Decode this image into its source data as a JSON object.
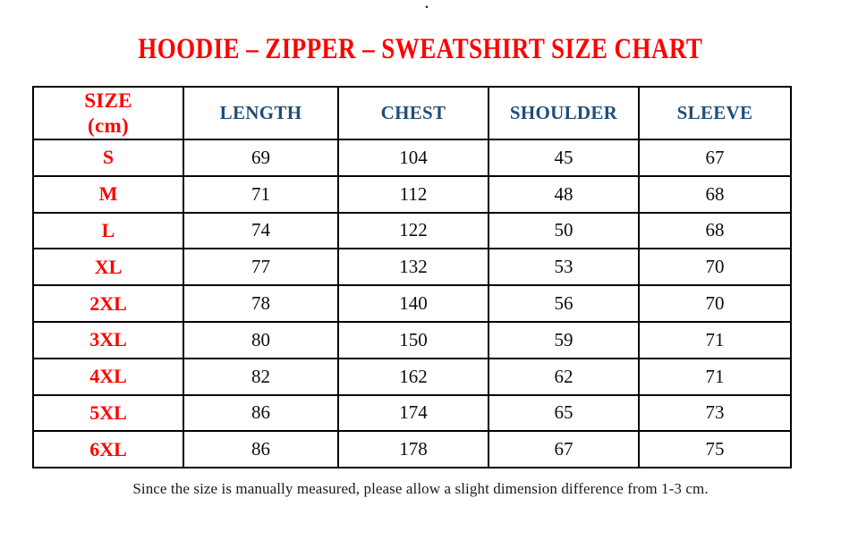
{
  "page": {
    "stray_mark": ".",
    "title": "HOODIE – ZIPPER – SWEATSHIRT SIZE CHART",
    "footnote": "Since the size is manually measured, please allow a slight dimension difference from 1-3 cm."
  },
  "colors": {
    "title_red": "#ff0000",
    "header_blue": "#1f4e79",
    "body_text": "#0d0d0d",
    "border": "#000000"
  },
  "table": {
    "header": {
      "size_line1": "SIZE",
      "size_line2": "(cm)",
      "columns": [
        "LENGTH",
        "CHEST",
        "SHOULDER",
        "SLEEVE"
      ]
    },
    "rows": [
      {
        "size": "S",
        "length": 69,
        "chest": 104,
        "shoulder": 45,
        "sleeve": 67
      },
      {
        "size": "M",
        "length": 71,
        "chest": 112,
        "shoulder": 48,
        "sleeve": 68
      },
      {
        "size": "L",
        "length": 74,
        "chest": 122,
        "shoulder": 50,
        "sleeve": 68
      },
      {
        "size": "XL",
        "length": 77,
        "chest": 132,
        "shoulder": 53,
        "sleeve": 70
      },
      {
        "size": "2XL",
        "length": 78,
        "chest": 140,
        "shoulder": 56,
        "sleeve": 70
      },
      {
        "size": "3XL",
        "length": 80,
        "chest": 150,
        "shoulder": 59,
        "sleeve": 71
      },
      {
        "size": "4XL",
        "length": 82,
        "chest": 162,
        "shoulder": 62,
        "sleeve": 71
      },
      {
        "size": "5XL",
        "length": 86,
        "chest": 174,
        "shoulder": 65,
        "sleeve": 73
      },
      {
        "size": "6XL",
        "length": 86,
        "chest": 178,
        "shoulder": 67,
        "sleeve": 75
      }
    ]
  }
}
